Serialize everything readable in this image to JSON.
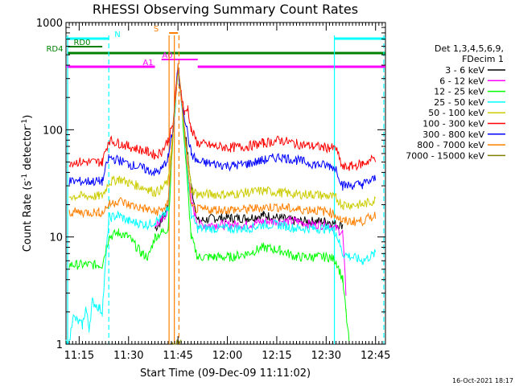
{
  "chart_data": {
    "type": "line",
    "title": "RHESSI Observing Summary Count Rates",
    "xlabel": "Start Time (09-Dec-09 11:11:02)",
    "ylabel_main": "Count Rate (s",
    "ylabel_sup1": "-1",
    "ylabel_mid": " detector",
    "ylabel_sup2": "-1",
    "ylabel_end": ")",
    "x_unit": "minutes after 11:11:02",
    "xlim": [
      0,
      97
    ],
    "ylim": [
      1,
      1000
    ],
    "yscale": "log",
    "x_ticks": [
      {
        "value": 4,
        "label": "11:15"
      },
      {
        "value": 19,
        "label": "11:30"
      },
      {
        "value": 34,
        "label": "11:45"
      },
      {
        "value": 49,
        "label": "12:00"
      },
      {
        "value": 64,
        "label": "12:15"
      },
      {
        "value": 79,
        "label": "12:30"
      },
      {
        "value": 94,
        "label": "12:45"
      }
    ],
    "y_ticks": [
      {
        "value": 1,
        "label": "1"
      },
      {
        "value": 10,
        "label": "10"
      },
      {
        "value": 100,
        "label": "100"
      },
      {
        "value": 1000,
        "label": "1000"
      }
    ],
    "legend_placement": "right",
    "legend_header": [
      "Det 1,3,4,5,6,9,",
      "FDecim 1"
    ],
    "series": [
      {
        "name": "3 - 6 keV",
        "color": "#000000",
        "x": [
          0,
          1,
          13,
          16,
          19,
          25,
          27,
          29,
          31,
          32.5,
          34,
          35,
          38,
          40,
          45,
          50,
          55,
          60,
          65,
          70,
          75,
          80,
          82,
          84,
          85,
          87,
          90,
          94
        ],
        "y": [
          null,
          null,
          null,
          null,
          null,
          null,
          12,
          14,
          20,
          100,
          380,
          200,
          30,
          14,
          15,
          15,
          15,
          16,
          15,
          14,
          14,
          14,
          13,
          13,
          null,
          null,
          null,
          null
        ]
      },
      {
        "name": "6 - 12 keV",
        "color": "#ff00ff",
        "x": [
          0,
          1,
          10,
          13,
          16,
          19,
          25,
          27,
          29,
          31,
          32.5,
          34,
          35,
          38,
          40,
          45,
          50,
          55,
          60,
          65,
          70,
          75,
          80,
          82,
          84,
          85,
          87,
          90,
          94
        ],
        "y": [
          null,
          null,
          null,
          null,
          null,
          null,
          null,
          13,
          14,
          18,
          100,
          380,
          200,
          22,
          13,
          13,
          13,
          13,
          14,
          14,
          14,
          13,
          13,
          12,
          11,
          3,
          null,
          null,
          null
        ]
      },
      {
        "name": "12 - 25 keV",
        "color": "#00ff00",
        "x": [
          0,
          1,
          10,
          11,
          13,
          16,
          19,
          23,
          25,
          27,
          29,
          31,
          32.5,
          34,
          35,
          38,
          40,
          45,
          50,
          55,
          60,
          65,
          70,
          75,
          80,
          82,
          84,
          85,
          86
        ],
        "y": [
          null,
          5.5,
          5.5,
          5.5,
          10,
          11,
          10,
          7,
          6.5,
          10,
          11,
          12,
          90,
          370,
          200,
          10,
          6.5,
          6.5,
          6.5,
          7,
          8,
          7.5,
          6.5,
          6.5,
          6.5,
          6,
          4,
          2,
          1
        ]
      },
      {
        "name": "25 - 50 keV",
        "color": "#00ffff",
        "x": [
          0,
          1,
          2,
          5,
          6,
          7,
          8,
          10,
          11,
          13,
          16,
          19,
          25,
          27,
          29,
          31,
          32.5,
          34,
          35,
          38,
          40,
          45,
          50,
          55,
          60,
          65,
          70,
          75,
          80,
          82,
          84,
          90,
          94
        ],
        "y": [
          1,
          1,
          1.8,
          1.5,
          2.2,
          1.4,
          2.5,
          2.2,
          2.0,
          15,
          16,
          14,
          13,
          14,
          15,
          18,
          100,
          380,
          200,
          16,
          12,
          12,
          12,
          12,
          13,
          13,
          12,
          12,
          12,
          11,
          7,
          6,
          7
        ]
      },
      {
        "name": "50 - 100 keV",
        "color": "#cccc00",
        "x": [
          0,
          1,
          10,
          11,
          13,
          16,
          19,
          25,
          27,
          29,
          31,
          32.5,
          34,
          35,
          38,
          40,
          45,
          50,
          55,
          60,
          65,
          70,
          75,
          80,
          82,
          84,
          90,
          94
        ],
        "y": [
          null,
          24,
          24,
          24,
          32,
          35,
          32,
          28,
          26,
          28,
          33,
          100,
          380,
          200,
          28,
          25,
          25,
          25,
          26,
          27,
          26,
          25,
          25,
          24,
          23,
          20,
          20,
          22
        ]
      },
      {
        "name": "100 - 300 keV",
        "color": "#ff0000",
        "x": [
          0,
          1,
          10,
          11,
          13,
          16,
          19,
          25,
          27,
          29,
          31,
          32.5,
          34,
          35,
          36,
          37,
          38,
          40,
          45,
          50,
          55,
          60,
          65,
          70,
          75,
          80,
          82,
          84,
          90,
          94
        ],
        "y": [
          null,
          50,
          50,
          50,
          80,
          75,
          70,
          62,
          58,
          62,
          80,
          110,
          390,
          220,
          140,
          160,
          100,
          75,
          70,
          68,
          70,
          75,
          80,
          74,
          70,
          68,
          66,
          44,
          48,
          55
        ]
      },
      {
        "name": "300 - 800 keV",
        "color": "#0000ff",
        "x": [
          0,
          1,
          10,
          11,
          13,
          16,
          19,
          25,
          27,
          29,
          31,
          32.5,
          34,
          35,
          38,
          40,
          45,
          50,
          55,
          60,
          65,
          70,
          75,
          80,
          82,
          84,
          90,
          94
        ],
        "y": [
          null,
          33,
          33,
          33,
          55,
          52,
          48,
          42,
          40,
          42,
          55,
          100,
          380,
          200,
          60,
          50,
          48,
          46,
          48,
          52,
          56,
          52,
          48,
          46,
          44,
          30,
          31,
          35
        ]
      },
      {
        "name": "800 - 7000 keV",
        "color": "#ff8000",
        "x": [
          0,
          1,
          10,
          11,
          13,
          16,
          19,
          25,
          27,
          29,
          31,
          32.5,
          34,
          35,
          38,
          40,
          45,
          50,
          55,
          60,
          65,
          70,
          75,
          80,
          82,
          84,
          90,
          94
        ],
        "y": [
          null,
          17,
          17,
          17,
          20,
          22,
          20,
          18,
          17,
          18,
          20,
          100,
          380,
          200,
          19,
          18,
          18,
          18,
          18,
          19,
          19,
          18,
          18,
          17,
          16,
          14,
          14,
          16
        ]
      },
      {
        "name": "7000 - 15000 keV",
        "color": "#808000",
        "x": [
          0,
          1,
          31,
          32,
          33,
          34,
          35,
          36
        ],
        "y": [
          null,
          null,
          null,
          1,
          1,
          1,
          1,
          null
        ]
      }
    ],
    "flag_bars": [
      {
        "label": "N",
        "color": "#00ffff",
        "segments": [
          [
            0,
            13
          ],
          [
            81.5,
            97
          ]
        ]
      },
      {
        "label": "RD0",
        "color": "#008000",
        "segments": [
          [
            0.5,
            11
          ]
        ]
      },
      {
        "label": "RD4",
        "color": "#008000",
        "segments": [
          [
            0.5,
            97
          ]
        ]
      },
      {
        "label": "S",
        "color": "#ff8000",
        "segments": [
          [
            31.3,
            34
          ]
        ]
      },
      {
        "label": "A0",
        "color": "#ff00ff",
        "segments": [
          [
            29,
            40
          ]
        ]
      },
      {
        "label": "A1",
        "color": "#ff00ff",
        "segments": [
          [
            0,
            27
          ],
          [
            40,
            97
          ]
        ]
      }
    ],
    "vertical_markers": [
      {
        "x": 0.5,
        "color": "#00ffff",
        "style": "solid"
      },
      {
        "x": 13,
        "color": "#00ffff",
        "style": "dashed"
      },
      {
        "x": 81.5,
        "color": "#00ffff",
        "style": "solid"
      },
      {
        "x": 96.5,
        "color": "#00ffff",
        "style": "dashed"
      },
      {
        "x": 31.3,
        "color": "#ff8000",
        "style": "solid"
      },
      {
        "x": 32.9,
        "color": "#ff8000",
        "style": "solid"
      },
      {
        "x": 34.3,
        "color": "#ff8000",
        "style": "dashed"
      }
    ],
    "footer_date": "16-Oct-2021 18:17"
  }
}
